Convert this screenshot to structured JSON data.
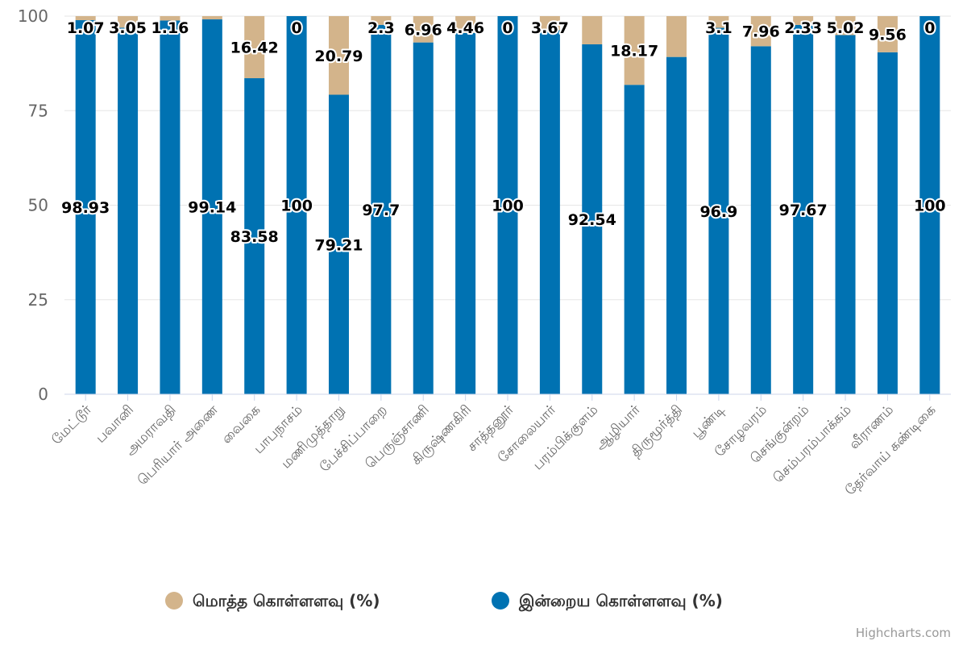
{
  "chart_data": {
    "type": "bar",
    "stacked": true,
    "categories": [
      "மேட்டூர்",
      "பவானி",
      "அமராவதி",
      "பெரியார் அணை",
      "வைகை",
      "பாபநாசம்",
      "மணிமுத்தாறு",
      "பேச்சிப்பாறை",
      "பெருஞ்சாணி",
      "கிருஷ்ணகிரி",
      "சாத்தனூர்",
      "சோலையார்",
      "பரம்பிக்குளம்",
      "ஆழியார்",
      "திருமூர்த்தி",
      "பூண்டி",
      "சோழவரம்",
      "செங்குன்றம்",
      "செம்பரம்பாக்கம்",
      "வீராணம்",
      "தேர்வாய் கண்டிகை"
    ],
    "series": [
      {
        "name": "மொத்த கொள்ளளவு (%)",
        "color": "#D3B48B",
        "values": [
          1.07,
          3.05,
          1.16,
          0.86,
          16.42,
          0,
          20.79,
          2.3,
          6.96,
          4.46,
          0,
          3.67,
          7.46,
          18.17,
          10.8,
          3.1,
          7.96,
          2.33,
          5.02,
          9.56,
          0
        ],
        "labels": [
          "1.07",
          "3.05",
          "1.16",
          "",
          "16.42",
          "0",
          "20.79",
          "2.3",
          "6.96",
          "4.46",
          "0",
          "3.67",
          "",
          "18.17",
          "",
          "3.1",
          "7.96",
          "2.33",
          "5.02",
          "9.56",
          "0"
        ]
      },
      {
        "name": "இன்றைய கொள்ளளவு (%)",
        "color": "#0072B2",
        "values": [
          98.93,
          96.95,
          98.84,
          99.14,
          83.58,
          100,
          79.21,
          97.7,
          93.04,
          95.54,
          100,
          96.33,
          92.54,
          81.83,
          89.2,
          96.9,
          92.04,
          97.67,
          94.98,
          90.44,
          100
        ],
        "labels": [
          "98.93",
          "",
          "",
          "99.14",
          "83.58",
          "100",
          "79.21",
          "97.7",
          "",
          "",
          "100",
          "",
          "92.54",
          "",
          "",
          "96.9",
          "",
          "97.67",
          "",
          "",
          "100"
        ]
      }
    ],
    "ylim": [
      0,
      100
    ],
    "yticks": [
      "0",
      "25",
      "50",
      "75",
      "100"
    ],
    "grid": true,
    "legend_position": "bottom-center"
  },
  "credits": "Highcharts.com"
}
